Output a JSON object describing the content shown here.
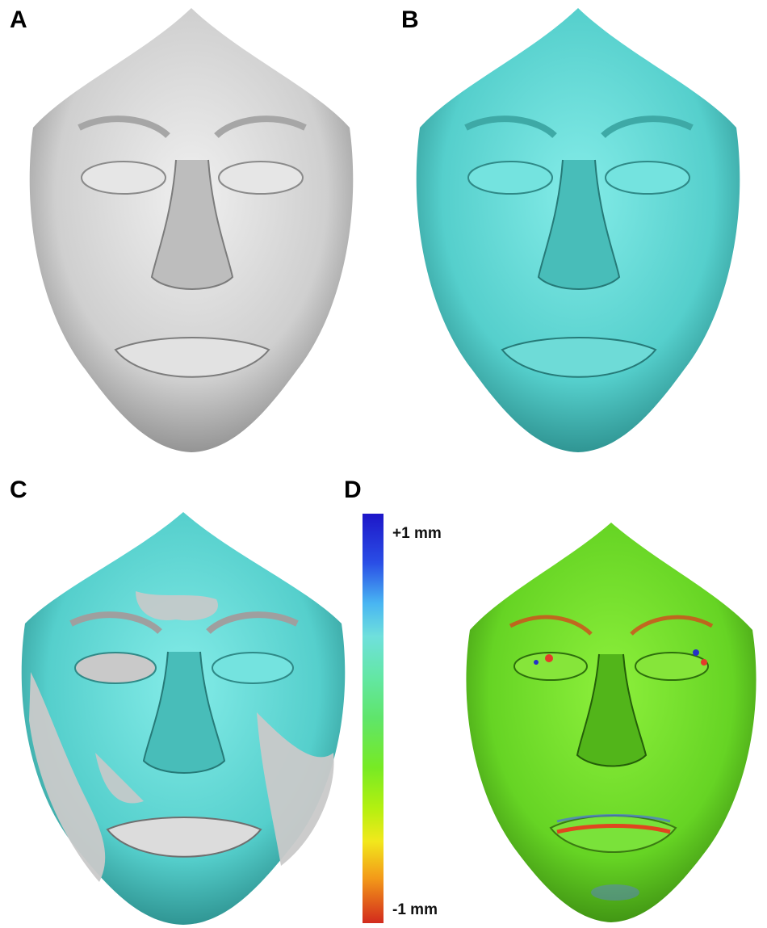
{
  "panels": {
    "a": {
      "label": "A",
      "surface_color": "#d9d9d9"
    },
    "b": {
      "label": "B",
      "surface_color": "#5fd6d3"
    },
    "c": {
      "label": "C",
      "surface_color": "#5fd0cf",
      "overlay_color": "#c8c8c8"
    },
    "d": {
      "label": "D",
      "surface_color": "#6fd92a"
    }
  },
  "color_scale": {
    "max_label": "+1 mm",
    "min_label": "-1 mm",
    "colors": [
      "#1d16c8",
      "#49b6f2",
      "#5fe56a",
      "#b4f010",
      "#f2e81c",
      "#f39a19",
      "#d22a1d"
    ]
  }
}
